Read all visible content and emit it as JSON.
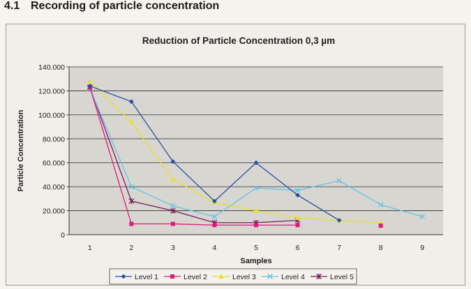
{
  "section": {
    "number": "4.1",
    "title": "Recording of particle concentration"
  },
  "chart_data": {
    "type": "line",
    "title": "Reduction of Particle Concentration 0,3 µm",
    "xlabel": "Samples",
    "ylabel": "Particle Concentration",
    "categories": [
      "1",
      "2",
      "3",
      "4",
      "5",
      "6",
      "7",
      "8",
      "9"
    ],
    "yticks": [
      "0",
      "20.000",
      "40.000",
      "60.000",
      "80.000",
      "100.000",
      "120.000",
      "140.000"
    ],
    "ylim": [
      0,
      140000
    ],
    "grid": true,
    "legend_position": "bottom",
    "series": [
      {
        "name": "Level 1",
        "color": "#2a4f9e",
        "marker": "diamond",
        "values": [
          124000,
          111000,
          61000,
          28000,
          60000,
          33000,
          12000,
          null,
          null
        ]
      },
      {
        "name": "Level 2",
        "color": "#e0197a",
        "marker": "square",
        "values": [
          123000,
          9000,
          9000,
          8000,
          8000,
          8000,
          null,
          7500,
          null
        ]
      },
      {
        "name": "Level 3",
        "color": "#e8e02a",
        "marker": "triangle",
        "values": [
          128000,
          94000,
          46000,
          27000,
          20000,
          14000,
          12000,
          10000,
          null
        ]
      },
      {
        "name": "Level 4",
        "color": "#63c3e6",
        "marker": "x",
        "values": [
          122000,
          40000,
          24000,
          15000,
          39000,
          37000,
          45000,
          25000,
          15000
        ]
      },
      {
        "name": "Level 5",
        "color": "#7a1d5a",
        "marker": "star",
        "values": [
          123000,
          28000,
          20000,
          10000,
          10000,
          12000,
          null,
          null,
          null
        ]
      }
    ]
  }
}
